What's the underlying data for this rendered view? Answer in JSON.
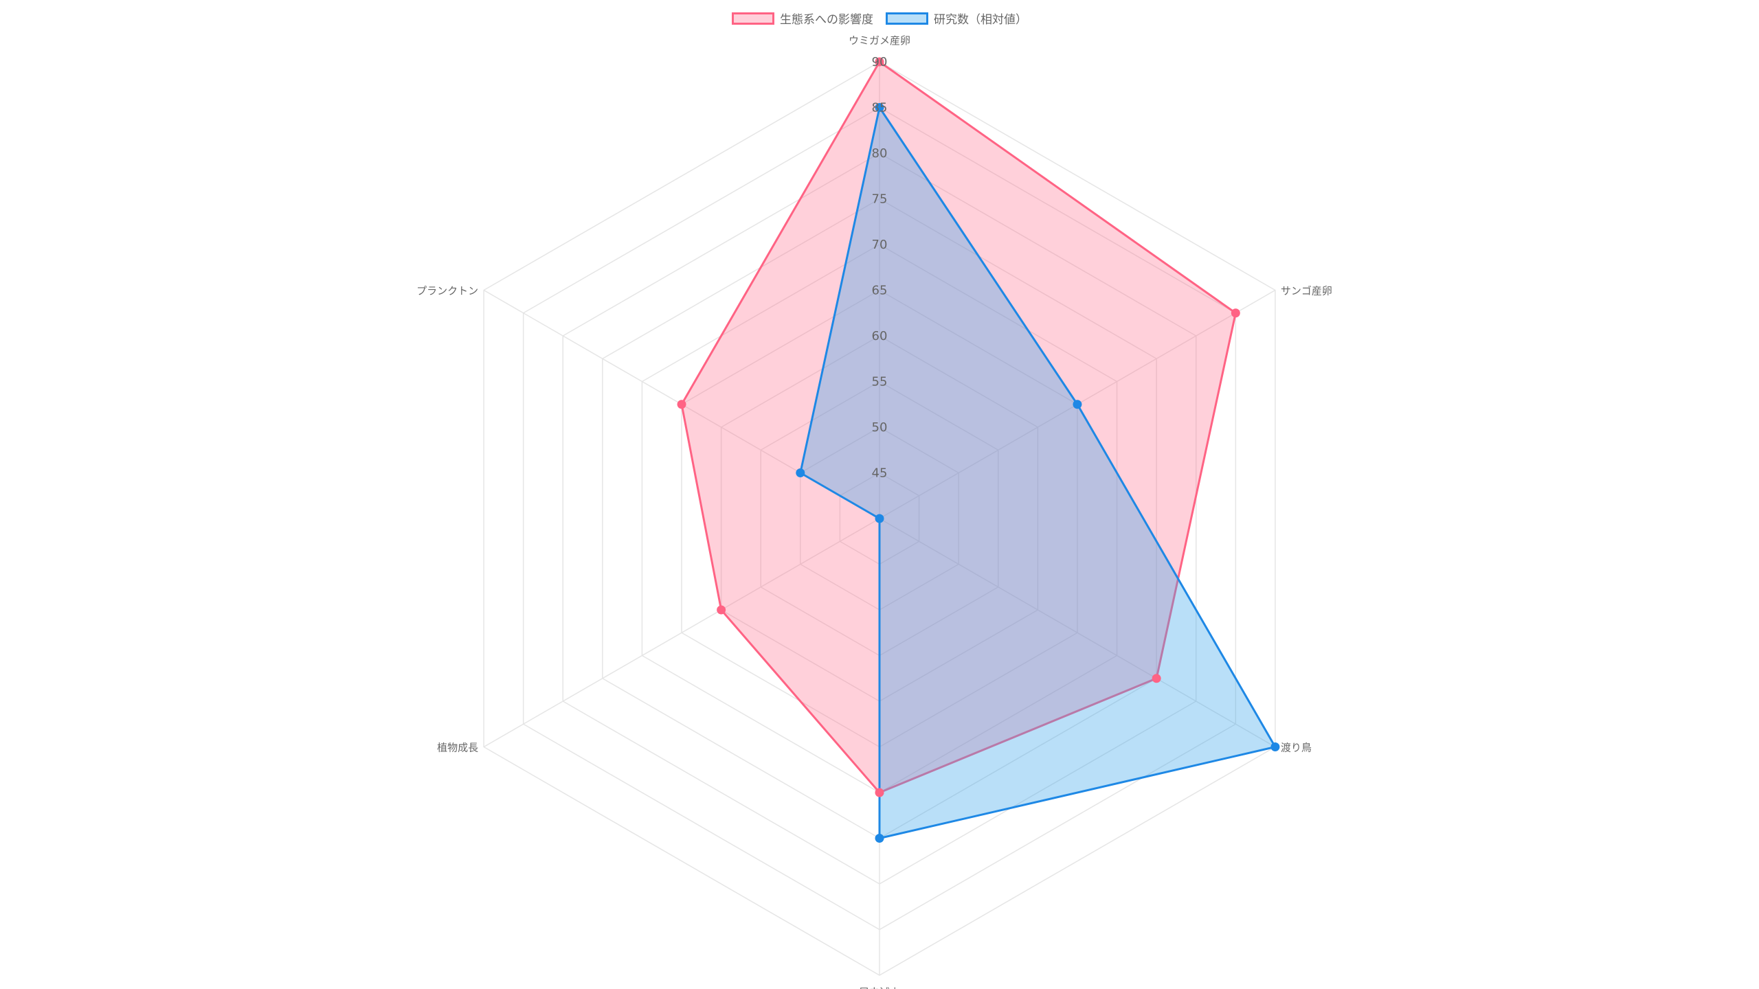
{
  "chart_data": {
    "type": "radar",
    "categories": [
      "ウミガメ産卵",
      "サンゴ産卵",
      "渡り鳥",
      "昆虫減少",
      "植物成長",
      "プランクトン"
    ],
    "rlim": [
      40,
      90
    ],
    "ticks": [
      "45",
      "50",
      "55",
      "60",
      "65",
      "70",
      "75",
      "80",
      "85",
      "90"
    ],
    "grid": true,
    "legend_position": "top",
    "series": [
      {
        "name": "生態系への影響度",
        "values": [
          90,
          85,
          75,
          70,
          60,
          65
        ],
        "stroke": "#ff6384",
        "fill": "rgba(255,99,132,0.3)"
      },
      {
        "name": "研究数（相対値）",
        "values": [
          85,
          65,
          90,
          75,
          40,
          50
        ],
        "stroke": "#1e88e5",
        "fill": "rgba(54,162,235,0.35)"
      }
    ]
  }
}
